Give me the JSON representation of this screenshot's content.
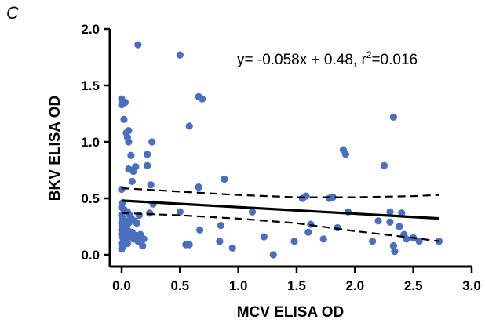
{
  "panel_label": "C",
  "chart_data": {
    "type": "scatter",
    "xlabel": "MCV ELISA OD",
    "ylabel": "BKV ELISA OD",
    "xlim": [
      0.0,
      3.0
    ],
    "ylim": [
      0.0,
      2.0
    ],
    "xticks": [
      "0.0",
      "0.5",
      "1.0",
      "1.5",
      "2.0",
      "2.5",
      "3.0"
    ],
    "yticks": [
      "0.0",
      "0.5",
      "1.0",
      "1.5",
      "2.0"
    ],
    "annotation": {
      "prefix": "y= -0.058x + 0.48, r",
      "sup": "2",
      "suffix": "=0.016"
    },
    "grid": false,
    "point_color": "#4a6fc0",
    "points": [
      [
        0.0,
        1.38
      ],
      [
        0.0,
        1.33
      ],
      [
        0.03,
        1.35
      ],
      [
        0.02,
        1.2
      ],
      [
        0.04,
        1.08
      ],
      [
        0.05,
        1.04
      ],
      [
        0.06,
        1.1
      ],
      [
        0.06,
        1.0
      ],
      [
        0.08,
        0.88
      ],
      [
        0.06,
        0.76
      ],
      [
        0.1,
        0.75
      ],
      [
        0.1,
        0.74
      ],
      [
        0.12,
        0.78
      ],
      [
        0.09,
        0.65
      ],
      [
        0.14,
        1.86
      ],
      [
        0.22,
        0.89
      ],
      [
        0.26,
        1.0
      ],
      [
        0.22,
        0.79
      ],
      [
        0.25,
        0.62
      ],
      [
        0.27,
        0.45
      ],
      [
        0.24,
        0.37
      ],
      [
        0.19,
        0.14
      ],
      [
        0.11,
        0.3
      ],
      [
        0.13,
        0.28
      ],
      [
        0.15,
        0.35
      ],
      [
        0.0,
        0.58
      ],
      [
        0.01,
        0.46
      ],
      [
        0.0,
        0.42
      ],
      [
        0.02,
        0.4
      ],
      [
        0.0,
        0.35
      ],
      [
        0.01,
        0.32
      ],
      [
        0.0,
        0.28
      ],
      [
        0.01,
        0.25
      ],
      [
        0.0,
        0.22
      ],
      [
        0.02,
        0.2
      ],
      [
        0.0,
        0.18
      ],
      [
        0.01,
        0.15
      ],
      [
        0.02,
        0.13
      ],
      [
        0.0,
        0.1
      ],
      [
        0.01,
        0.07
      ],
      [
        0.0,
        0.05
      ],
      [
        0.03,
        0.3
      ],
      [
        0.04,
        0.26
      ],
      [
        0.05,
        0.22
      ],
      [
        0.06,
        0.18
      ],
      [
        0.04,
        0.14
      ],
      [
        0.05,
        0.1
      ],
      [
        0.07,
        0.35
      ],
      [
        0.05,
        0.38
      ],
      [
        0.08,
        0.33
      ],
      [
        0.06,
        0.28
      ],
      [
        0.09,
        0.2
      ],
      [
        0.1,
        0.14
      ],
      [
        0.12,
        0.17
      ],
      [
        0.14,
        0.12
      ],
      [
        0.16,
        0.18
      ],
      [
        0.18,
        0.08
      ],
      [
        0.5,
        1.77
      ],
      [
        0.58,
        1.14
      ],
      [
        0.66,
        1.4
      ],
      [
        0.69,
        1.38
      ],
      [
        0.66,
        0.6
      ],
      [
        0.5,
        0.38
      ],
      [
        0.67,
        0.22
      ],
      [
        0.55,
        0.09
      ],
      [
        0.58,
        0.09
      ],
      [
        0.88,
        0.67
      ],
      [
        0.85,
        0.26
      ],
      [
        0.84,
        0.12
      ],
      [
        0.95,
        0.06
      ],
      [
        1.12,
        0.38
      ],
      [
        1.22,
        0.16
      ],
      [
        1.3,
        0.0
      ],
      [
        1.48,
        0.12
      ],
      [
        1.55,
        0.5
      ],
      [
        1.58,
        0.52
      ],
      [
        1.62,
        0.27
      ],
      [
        1.6,
        0.2
      ],
      [
        1.78,
        0.5
      ],
      [
        1.81,
        0.51
      ],
      [
        1.73,
        0.14
      ],
      [
        1.85,
        0.24
      ],
      [
        1.9,
        0.93
      ],
      [
        1.92,
        0.89
      ],
      [
        1.94,
        0.38
      ],
      [
        2.2,
        0.3
      ],
      [
        2.15,
        0.12
      ],
      [
        2.25,
        0.79
      ],
      [
        2.33,
        1.22
      ],
      [
        2.3,
        0.38
      ],
      [
        2.3,
        0.29
      ],
      [
        2.33,
        0.08
      ],
      [
        2.34,
        0.03
      ],
      [
        2.38,
        0.25
      ],
      [
        2.4,
        0.37
      ],
      [
        2.42,
        0.18
      ],
      [
        2.44,
        0.14
      ],
      [
        2.5,
        0.15
      ],
      [
        2.55,
        0.12
      ],
      [
        2.72,
        0.12
      ]
    ],
    "fit_line": {
      "x": [
        0.0,
        2.72
      ],
      "slope": -0.058,
      "intercept": 0.48
    },
    "ci_upper": [
      [
        0.0,
        0.59
      ],
      [
        0.5,
        0.56
      ],
      [
        1.0,
        0.53
      ],
      [
        1.5,
        0.51
      ],
      [
        2.0,
        0.51
      ],
      [
        2.5,
        0.52
      ],
      [
        2.72,
        0.53
      ]
    ],
    "ci_lower": [
      [
        0.0,
        0.37
      ],
      [
        0.5,
        0.35
      ],
      [
        1.0,
        0.32
      ],
      [
        1.5,
        0.28
      ],
      [
        2.0,
        0.21
      ],
      [
        2.5,
        0.15
      ],
      [
        2.72,
        0.12
      ]
    ]
  }
}
